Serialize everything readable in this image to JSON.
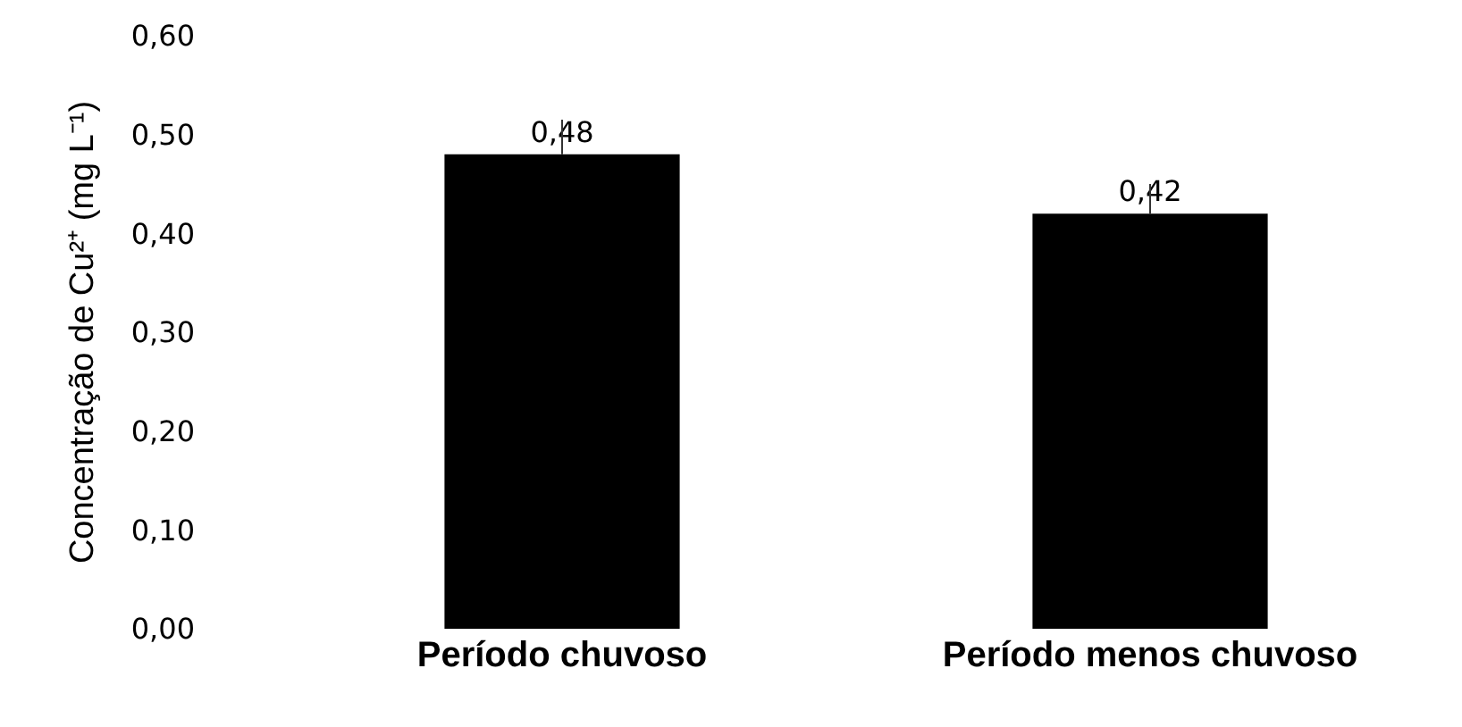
{
  "chart_data": {
    "type": "bar",
    "ylabel": "Concentração de Cu²⁺ (mg L⁻¹)",
    "categories": [
      "Período chuvoso",
      "Período menos chuvoso"
    ],
    "values": [
      0.48,
      0.42
    ],
    "color": "#000000",
    "errors": [
      [
        0.48,
        0.515
      ],
      [
        0.42,
        0.45
      ]
    ],
    "value_labels": [
      "0,48",
      "0,42"
    ],
    "ylim": [
      0,
      0.6
    ],
    "yticks": [
      {
        "value": 0,
        "label": "0,00"
      },
      {
        "value": 0.1,
        "label": "0,10"
      },
      {
        "value": 0.2,
        "label": "0,20"
      },
      {
        "value": 0.3,
        "label": "0,30"
      },
      {
        "value": 0.4,
        "label": "0,40"
      },
      {
        "value": 0.5,
        "label": "0,50"
      },
      {
        "value": 0.6,
        "label": "0,60"
      }
    ],
    "legend": false
  }
}
